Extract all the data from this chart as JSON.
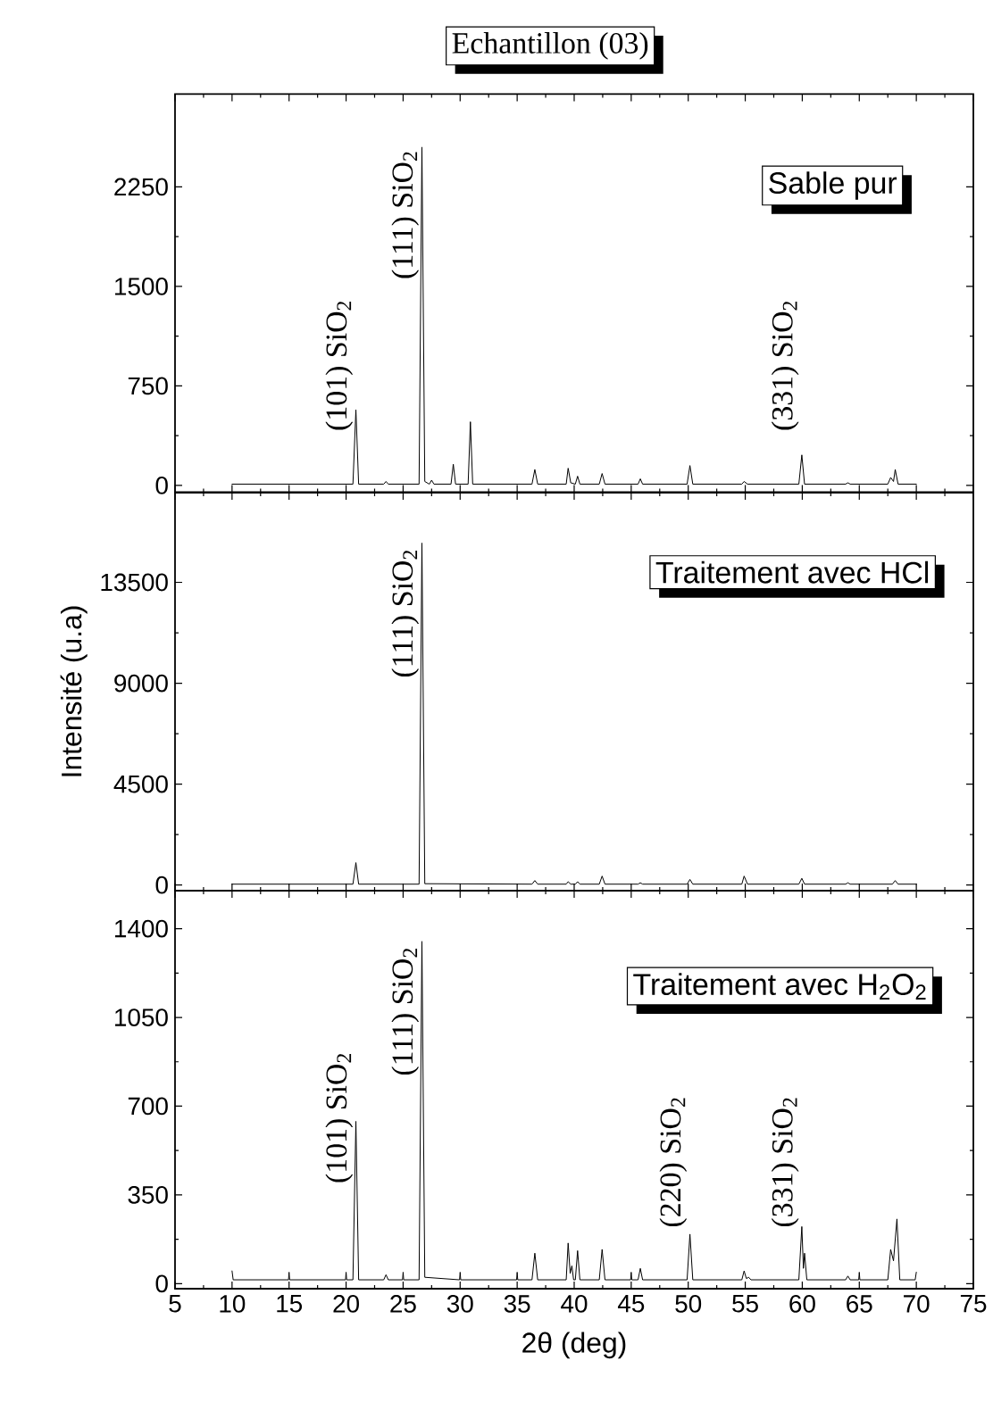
{
  "chart_data": [
    {
      "type": "line",
      "title": "Echantillon (03)",
      "xlim": [
        5,
        75
      ],
      "ylim": [
        -50,
        2950
      ],
      "xticks": [
        5,
        10,
        15,
        20,
        25,
        30,
        35,
        40,
        45,
        50,
        55,
        60,
        65,
        70,
        75
      ],
      "yticks": [
        0,
        750,
        1500,
        2250
      ],
      "tick_labels": "y",
      "series": [
        {
          "color": "#000000",
          "x": [
            10,
            20.6,
            20.86,
            21.1,
            23.3,
            23.5,
            23.7,
            26.4,
            26.65,
            26.9,
            27.3,
            27.5,
            27.7,
            29.2,
            29.4,
            29.6,
            30.7,
            30.9,
            31.1,
            36.3,
            36.55,
            36.8,
            39.3,
            39.47,
            39.7,
            40.1,
            40.3,
            40.5,
            42.2,
            42.45,
            42.7,
            45.6,
            45.8,
            46.0,
            49.9,
            50.15,
            50.4,
            54.7,
            54.9,
            55.2,
            59.7,
            59.96,
            60.2,
            63.8,
            64.0,
            64.2,
            67.5,
            67.75,
            68.0,
            68.15,
            68.4,
            70
          ],
          "values": [
            10,
            10,
            570,
            10,
            10,
            30,
            10,
            10,
            2550,
            30,
            10,
            40,
            10,
            10,
            160,
            10,
            10,
            480,
            10,
            10,
            120,
            10,
            10,
            130,
            20,
            10,
            70,
            10,
            10,
            90,
            10,
            10,
            50,
            10,
            10,
            150,
            10,
            10,
            30,
            10,
            10,
            230,
            10,
            10,
            20,
            10,
            10,
            60,
            30,
            120,
            10,
            10
          ]
        }
      ],
      "annotations": [
        {
          "text": "(101) SiO$_{2}$",
          "x": 20.86,
          "y": 570
        },
        {
          "text": "(111) SiO$_{2}$",
          "x": 26.65,
          "y": 2550
        },
        {
          "text": "(331) SiO$_{2}$",
          "x": 59.96,
          "y": 230
        },
        "Sable pur"
      ]
    },
    {
      "type": "line",
      "ylabel": "Intensité (u.a)",
      "xlim": [
        5,
        75
      ],
      "ylim": [
        -250,
        17500
      ],
      "xticks": [
        5,
        10,
        15,
        20,
        25,
        30,
        35,
        40,
        45,
        50,
        55,
        60,
        65,
        70,
        75
      ],
      "yticks": [
        0,
        4500,
        9000,
        13500
      ],
      "tick_labels": "y",
      "series": [
        {
          "color": "#000000",
          "x": [
            10,
            20.6,
            20.86,
            21.1,
            26.4,
            26.65,
            26.9,
            36.3,
            36.55,
            36.8,
            39.3,
            39.47,
            39.7,
            40.1,
            40.3,
            40.5,
            42.2,
            42.45,
            42.7,
            45.6,
            45.8,
            46.0,
            49.9,
            50.15,
            50.4,
            54.7,
            54.9,
            55.2,
            59.7,
            59.96,
            60.2,
            63.8,
            64.0,
            64.2,
            67.9,
            68.15,
            68.4,
            70
          ],
          "values": [
            40,
            40,
            1000,
            40,
            40,
            15250,
            60,
            40,
            200,
            40,
            40,
            150,
            40,
            40,
            150,
            40,
            40,
            400,
            40,
            40,
            100,
            40,
            40,
            250,
            40,
            40,
            400,
            40,
            40,
            300,
            40,
            40,
            100,
            40,
            40,
            200,
            40,
            40
          ]
        }
      ],
      "annotations": [
        {
          "text": "(111) SiO$_{2}$",
          "x": 26.65,
          "y": 15250
        },
        "Traitement avec HCl"
      ]
    },
    {
      "type": "line",
      "xlabel": "2θ (deg)",
      "xlim": [
        5,
        75
      ],
      "ylim": [
        -20,
        1550
      ],
      "xticks": [
        5,
        10,
        15,
        20,
        25,
        30,
        35,
        40,
        45,
        50,
        55,
        60,
        65,
        70,
        75
      ],
      "yticks": [
        0,
        350,
        700,
        1050,
        1400
      ],
      "series": [
        {
          "color": "#000000",
          "x": [
            10,
            10.1,
            14.95,
            15,
            15.05,
            19.95,
            20,
            20.05,
            20.6,
            20.86,
            21.1,
            23.3,
            23.5,
            23.7,
            24.95,
            25,
            25.05,
            26.4,
            26.65,
            26.9,
            29.95,
            30,
            30.05,
            34.95,
            35,
            35.05,
            36.3,
            36.55,
            36.8,
            39.3,
            39.47,
            39.65,
            39.8,
            39.95,
            40.1,
            40.3,
            40.5,
            42.2,
            42.45,
            42.7,
            44.95,
            45,
            45.05,
            45.6,
            45.8,
            46.0,
            49.9,
            50.15,
            50.4,
            54.7,
            54.9,
            55.1,
            55.3,
            55.5,
            59.7,
            59.96,
            60.1,
            60.2,
            60.4,
            63.8,
            64.0,
            64.2,
            64.95,
            65,
            65.05,
            67.5,
            67.75,
            68.0,
            68.3,
            68.55,
            69.9,
            70
          ],
          "values": [
            50,
            15,
            15,
            45,
            15,
            15,
            45,
            15,
            15,
            640,
            15,
            15,
            35,
            15,
            15,
            45,
            15,
            15,
            1350,
            25,
            15,
            45,
            15,
            15,
            45,
            15,
            15,
            120,
            15,
            15,
            160,
            40,
            70,
            15,
            15,
            130,
            15,
            15,
            135,
            15,
            15,
            45,
            15,
            15,
            60,
            15,
            15,
            195,
            15,
            15,
            50,
            20,
            25,
            15,
            15,
            225,
            60,
            120,
            15,
            15,
            30,
            15,
            15,
            45,
            15,
            15,
            135,
            90,
            255,
            15,
            15,
            45
          ]
        }
      ],
      "annotations": [
        {
          "text": "(101) SiO$_{2}$",
          "x": 20.86,
          "y": 640
        },
        {
          "text": "(111) SiO$_{2}$",
          "x": 26.65,
          "y": 1350
        },
        {
          "text": "(220) SiO$_{2}$",
          "x": 50.15,
          "y": 195
        },
        {
          "text": "(331) SiO$_{2}$",
          "x": 59.96,
          "y": 225
        },
        "Traitement avec H$_{2}$O$_{2}$"
      ]
    }
  ]
}
